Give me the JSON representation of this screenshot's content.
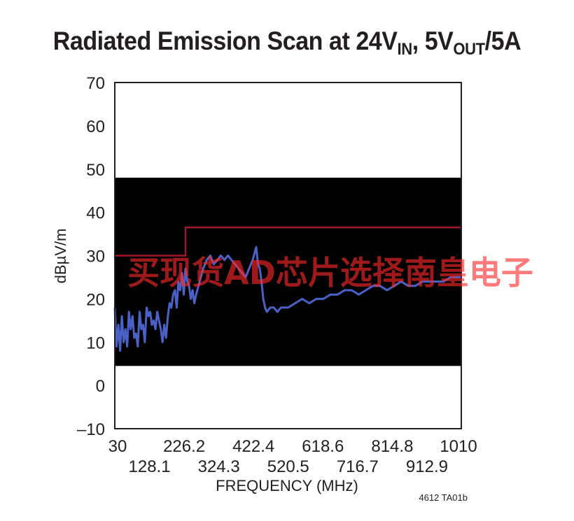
{
  "title": {
    "prefix": "Radiated Emission Scan at 24V",
    "sub1": "IN",
    "middle": ", 5V",
    "sub2": "OUT",
    "suffix": "/5A"
  },
  "figure_number": "4612 TA01b",
  "watermark": "买现货AD芯片选择南皇电子",
  "chart_data": {
    "type": "line",
    "xlabel": "FREQUENCY (MHz)",
    "ylabel": "dBµV/m",
    "xlim": [
      30,
      1010
    ],
    "ylim": [
      -10,
      70
    ],
    "x_ticks_upper": [
      "30",
      "226.2",
      "422.4",
      "618.6",
      "814.8",
      "1010"
    ],
    "x_ticks_lower": [
      "128.1",
      "324.3",
      "520.5",
      "716.7",
      "912.9"
    ],
    "y_ticks": [
      "70",
      "60",
      "50",
      "40",
      "30",
      "20",
      "10",
      "0",
      "–10"
    ],
    "noise_floor_band": [
      4.5,
      48
    ],
    "colors": {
      "band": "#000000",
      "limit": "#a0172b",
      "emission": "#4a62c8"
    },
    "series": [
      {
        "role": "limit",
        "x": [
          30,
          230,
          230,
          1010
        ],
        "y": [
          30,
          30,
          36.5,
          36.5
        ]
      },
      {
        "role": "emission",
        "x": [
          30,
          35,
          40,
          45,
          50,
          55,
          60,
          65,
          70,
          75,
          80,
          85,
          90,
          95,
          100,
          105,
          110,
          115,
          120,
          125,
          130,
          135,
          140,
          145,
          150,
          155,
          160,
          165,
          170,
          175,
          180,
          185,
          190,
          195,
          200,
          205,
          210,
          215,
          220,
          225,
          230,
          235,
          240,
          245,
          250,
          255,
          260,
          270,
          280,
          290,
          300,
          310,
          320,
          330,
          340,
          350,
          360,
          370,
          380,
          390,
          400,
          410,
          420,
          430,
          435,
          440,
          445,
          450,
          455,
          460,
          470,
          480,
          490,
          500,
          520,
          540,
          560,
          580,
          600,
          620,
          640,
          660,
          680,
          700,
          720,
          740,
          760,
          780,
          800,
          820,
          840,
          860,
          880,
          900,
          920,
          940,
          960,
          980,
          1000,
          1010
        ],
        "y": [
          18,
          9,
          14,
          8,
          16,
          10,
          13,
          9,
          17,
          13,
          16,
          11,
          12,
          9,
          17,
          13,
          14,
          10,
          18,
          16,
          17,
          14,
          15,
          13,
          17,
          15,
          13,
          10,
          14,
          11,
          16,
          19,
          18,
          21,
          22,
          18,
          24,
          22,
          26,
          21,
          27,
          24,
          23,
          20,
          22,
          19,
          21,
          24,
          27,
          29,
          30,
          28,
          29,
          30,
          29,
          30,
          29,
          28,
          27,
          26,
          25,
          27,
          29,
          32,
          28,
          27,
          24,
          20,
          18,
          17,
          18,
          18,
          17,
          18,
          18,
          19,
          20,
          19,
          20,
          20,
          21,
          21,
          22,
          22,
          21,
          22,
          23,
          23,
          22,
          23,
          24,
          23,
          23,
          24,
          24,
          24,
          24,
          25,
          25,
          25
        ]
      }
    ],
    "grid": false
  }
}
